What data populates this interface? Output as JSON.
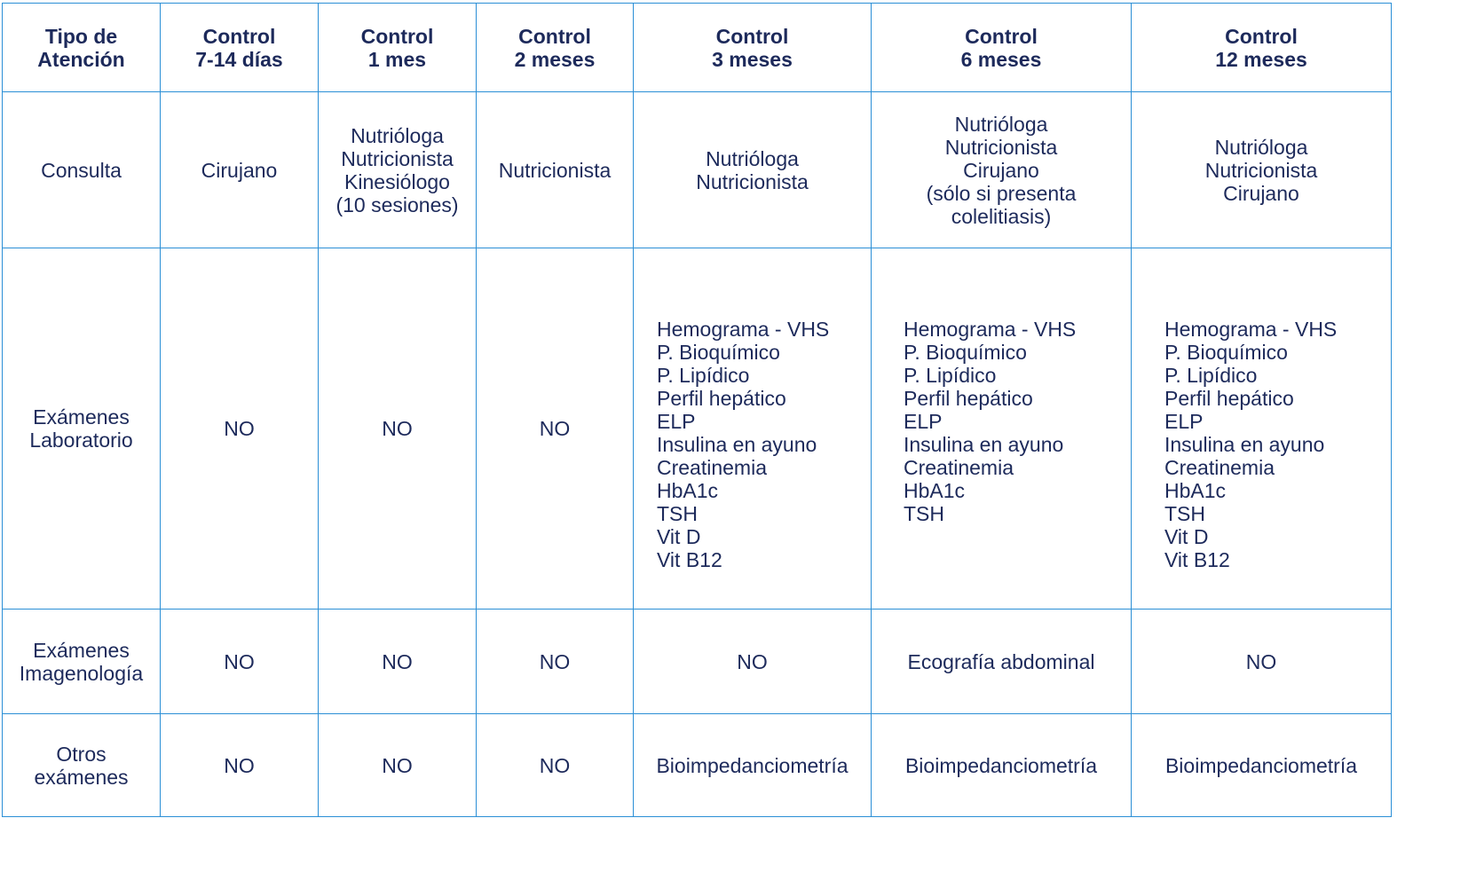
{
  "headers": [
    [
      "Tipo de",
      "Atención"
    ],
    [
      "Control",
      "7-14 días"
    ],
    [
      "Control",
      "1 mes"
    ],
    [
      "Control",
      "2 meses"
    ],
    [
      "Control",
      "3 meses"
    ],
    [
      "Control",
      "6 meses"
    ],
    [
      "Control",
      "12 meses"
    ]
  ],
  "rows": [
    {
      "label": [
        "Consulta"
      ],
      "cells": [
        [
          "Cirujano"
        ],
        [
          "Nutrióloga",
          "Nutricionista",
          "Kinesiólogo",
          "(10 sesiones)"
        ],
        [
          "Nutricionista"
        ],
        [
          "Nutrióloga",
          "Nutricionista"
        ],
        [
          "Nutrióloga",
          "Nutricionista",
          "Cirujano",
          "(sólo si presenta",
          "colelitiasis)"
        ],
        [
          "Nutrióloga",
          "Nutricionista",
          "Cirujano"
        ]
      ]
    },
    {
      "label": [
        "Exámenes",
        "Laboratorio"
      ],
      "cells": [
        [
          "NO"
        ],
        [
          "NO"
        ],
        [
          "NO"
        ],
        [
          "Hemograma - VHS",
          "P. Bioquímico",
          "P. Lipídico",
          "Perfil hepático",
          "ELP",
          "Insulina en ayuno",
          "Creatinemia",
          "HbA1c",
          "TSH",
          "Vit D",
          "Vit B12"
        ],
        [
          "Hemograma - VHS",
          "P. Bioquímico",
          "P. Lipídico",
          "Perfil hepático",
          "ELP",
          "Insulina en ayuno",
          "Creatinemia",
          "HbA1c",
          "TSH"
        ],
        [
          "Hemograma - VHS",
          "P. Bioquímico",
          "P. Lipídico",
          "Perfil hepático",
          "ELP",
          "Insulina en ayuno",
          "Creatinemia",
          "HbA1c",
          "TSH",
          "Vit D",
          "Vit B12"
        ]
      ]
    },
    {
      "label": [
        "Exámenes",
        "Imagenología"
      ],
      "cells": [
        [
          "NO"
        ],
        [
          "NO"
        ],
        [
          "NO"
        ],
        [
          "NO"
        ],
        [
          "Ecografía abdominal"
        ],
        [
          "NO"
        ]
      ]
    },
    {
      "label": [
        "Otros",
        "exámenes"
      ],
      "cells": [
        [
          "NO"
        ],
        [
          "NO"
        ],
        [
          "NO"
        ],
        [
          "Bioimpedanciometría"
        ],
        [
          "Bioimpedanciometría"
        ],
        [
          "Bioimpedanciometría"
        ]
      ]
    }
  ],
  "colors": {
    "border": "#2b8fd6",
    "text": "#1d2a5b"
  }
}
